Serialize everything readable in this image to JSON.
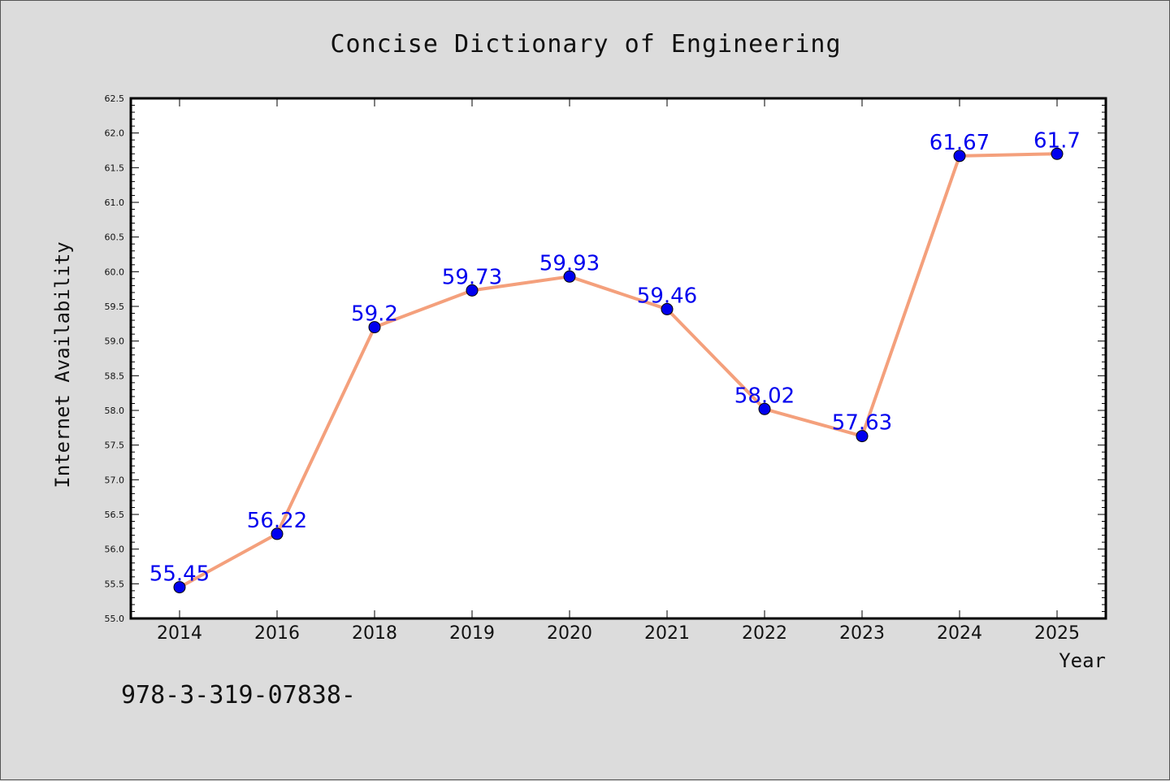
{
  "colors": {
    "background": "#dcdcdc",
    "plot_background": "#ffffff",
    "line": "#f4a07c",
    "marker": "#0000ee",
    "data_label": "#0000ee"
  },
  "footer_text": "978-3-319-07838-",
  "chart_data": {
    "type": "line",
    "title": "Concise Dictionary of Engineering",
    "xlabel": "Year",
    "ylabel": "Internet Availability",
    "categories": [
      "2014",
      "2016",
      "2018",
      "2019",
      "2020",
      "2021",
      "2022",
      "2023",
      "2024",
      "2025"
    ],
    "series": [
      {
        "values": [
          55.45,
          56.22,
          59.2,
          59.73,
          59.93,
          59.46,
          58.02,
          57.63,
          61.67,
          61.7
        ],
        "labels": [
          "55.45",
          "56.22",
          "59.2",
          "59.73",
          "59.93",
          "59.46",
          "58.02",
          "57.63",
          "61.67",
          "61.7"
        ]
      }
    ],
    "ylim": [
      55.0,
      62.5
    ],
    "yticks": [
      "55.0",
      "55.5",
      "56.0",
      "56.5",
      "57.0",
      "57.5",
      "58.0",
      "58.5",
      "59.0",
      "59.5",
      "60.0",
      "60.5",
      "61.0",
      "61.5",
      "62.0",
      "62.5"
    ],
    "ymin_tick": 55.0,
    "ytick_step": 0.5,
    "marker": "circle",
    "grid": false,
    "legend": "none"
  }
}
